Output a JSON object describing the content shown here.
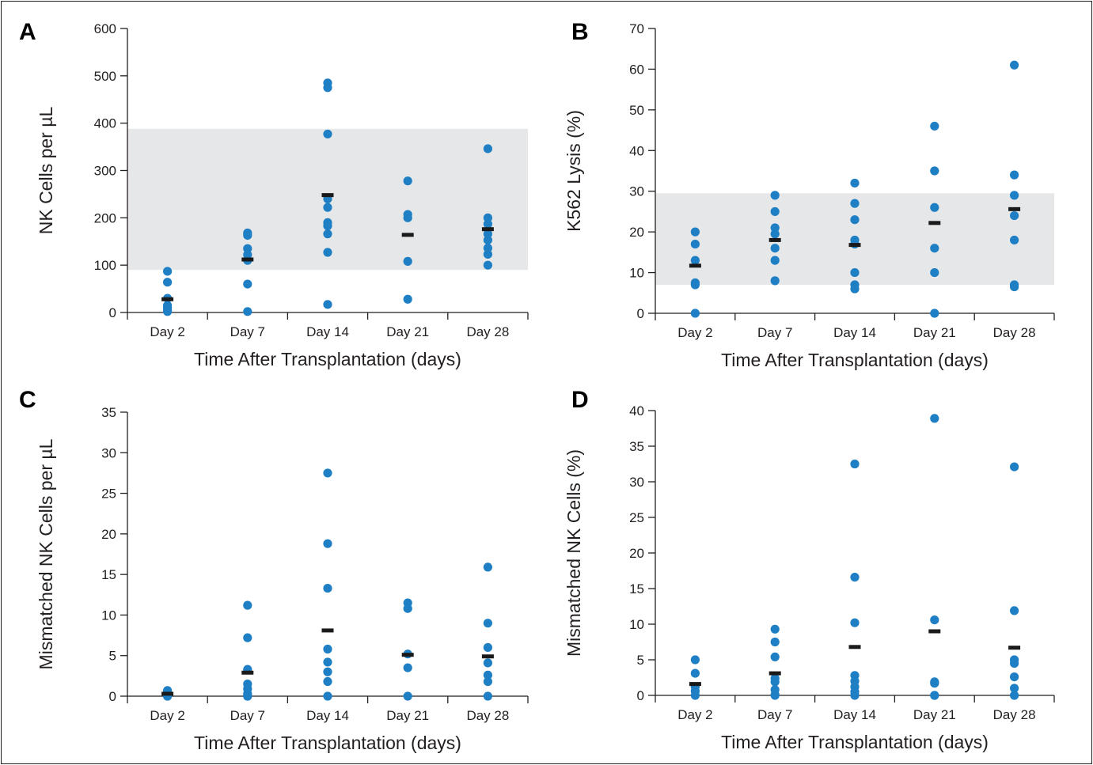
{
  "chart_data": [
    {
      "panel": "A",
      "type": "scatter",
      "xlabel": "Time After Transplantation (days)",
      "ylabel": "NK Cells per µL",
      "categories": [
        "Day 2",
        "Day 7",
        "Day 14",
        "Day 21",
        "Day 28"
      ],
      "ylim": [
        0,
        600
      ],
      "yticks": [
        "0",
        "100",
        "200",
        "300",
        "400",
        "500",
        "600"
      ],
      "yticks_values": [
        0,
        100,
        200,
        300,
        400,
        500,
        600
      ],
      "reference_band": [
        90,
        388
      ],
      "colors": {
        "points": "#1f7fc4",
        "median": "#1a1a1a",
        "band": "#e6e7e8",
        "axis": "#231f20"
      },
      "points": [
        [
          87,
          64,
          30,
          15,
          10,
          5,
          2
        ],
        [
          168,
          163,
          135,
          122,
          110,
          60,
          2
        ],
        [
          485,
          475,
          377,
          240,
          222,
          190,
          183,
          166,
          127,
          17
        ],
        [
          278,
          207,
          200,
          108,
          28
        ],
        [
          346,
          200,
          187,
          166,
          153,
          136,
          123,
          100
        ]
      ],
      "medians": [
        28,
        112,
        248,
        164,
        176
      ]
    },
    {
      "panel": "B",
      "type": "scatter",
      "xlabel": "Time After Transplantation (days)",
      "ylabel": "K562 Lysis (%)",
      "categories": [
        "Day 2",
        "Day 7",
        "Day 14",
        "Day 21",
        "Day 28"
      ],
      "ylim": [
        0,
        70
      ],
      "yticks": [
        "0",
        "10",
        "20",
        "30",
        "40",
        "50",
        "60",
        "70"
      ],
      "yticks_values": [
        0,
        10,
        20,
        30,
        40,
        50,
        60,
        70
      ],
      "reference_band": [
        7,
        29.5
      ],
      "colors": {
        "points": "#1f7fc4",
        "median": "#1a1a1a",
        "band": "#e6e7e8",
        "axis": "#231f20"
      },
      "points": [
        [
          20,
          17,
          13,
          7.5,
          7,
          0
        ],
        [
          29,
          25,
          21,
          19.5,
          16,
          13,
          8
        ],
        [
          32,
          27,
          23,
          18,
          17,
          10,
          7,
          6
        ],
        [
          46,
          35,
          26,
          16,
          10,
          0
        ],
        [
          61,
          34,
          29,
          24,
          18,
          7,
          6.5
        ]
      ],
      "medians": [
        11.7,
        18,
        16.8,
        22.2,
        25.6
      ]
    },
    {
      "panel": "C",
      "type": "scatter",
      "xlabel": "Time After Transplantation (days)",
      "ylabel": "Mismatched NK Cells per µL",
      "categories": [
        "Day 2",
        "Day 7",
        "Day 14",
        "Day 21",
        "Day 28"
      ],
      "ylim": [
        0,
        35
      ],
      "yticks": [
        "0",
        "5",
        "10",
        "15",
        "20",
        "25",
        "30",
        "35"
      ],
      "yticks_values": [
        0,
        5,
        10,
        15,
        20,
        25,
        30,
        35
      ],
      "colors": {
        "points": "#1f7fc4",
        "median": "#1a1a1a",
        "axis": "#231f20"
      },
      "points": [
        [
          0.7,
          0.4,
          0.1,
          0,
          0
        ],
        [
          11.2,
          7.2,
          3.3,
          1.5,
          0.9,
          0.3,
          0,
          0
        ],
        [
          27.5,
          18.8,
          13.3,
          5.8,
          4.2,
          3.0,
          1.8,
          0
        ],
        [
          11.5,
          10.8,
          5.2,
          3.5,
          0
        ],
        [
          15.9,
          9.0,
          6.0,
          4.1,
          2.6,
          1.8,
          0
        ]
      ],
      "medians": [
        0.3,
        2.9,
        8.1,
        5.1,
        4.9
      ]
    },
    {
      "panel": "D",
      "type": "scatter",
      "xlabel": "Time After Transplantation (days)",
      "ylabel": "Mismatched NK Cells (%)",
      "categories": [
        "Day 2",
        "Day 7",
        "Day 14",
        "Day 21",
        "Day 28"
      ],
      "ylim": [
        0,
        40
      ],
      "yticks": [
        "0",
        "5",
        "10",
        "15",
        "20",
        "25",
        "30",
        "35",
        "40"
      ],
      "yticks_values": [
        0,
        5,
        10,
        15,
        20,
        25,
        30,
        35,
        40
      ],
      "colors": {
        "points": "#1f7fc4",
        "median": "#1a1a1a",
        "axis": "#231f20"
      },
      "points": [
        [
          5.0,
          3.1,
          1.2,
          0.6,
          0
        ],
        [
          9.3,
          7.5,
          5.4,
          2.4,
          1.9,
          0.8,
          0.1,
          0
        ],
        [
          32.5,
          16.6,
          10.2,
          2.8,
          2.0,
          1.2,
          0.5,
          0
        ],
        [
          38.9,
          10.6,
          1.9,
          1.7,
          0,
          0
        ],
        [
          32.1,
          11.9,
          5.0,
          4.5,
          2.6,
          1.0,
          0
        ]
      ],
      "medians": [
        1.6,
        3.1,
        6.8,
        9.0,
        6.7
      ]
    }
  ]
}
